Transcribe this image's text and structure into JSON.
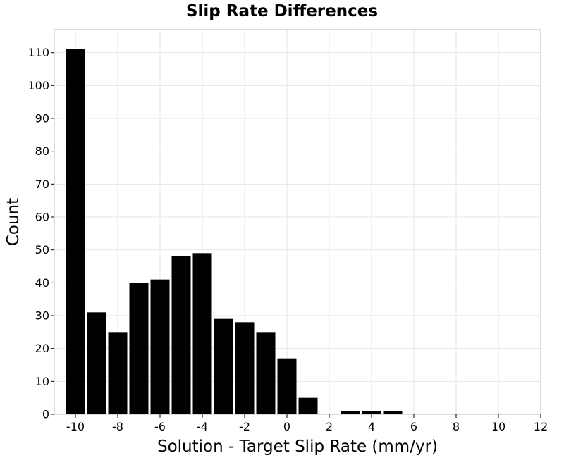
{
  "chart_data": {
    "type": "bar",
    "title": "Slip Rate Differences",
    "xlabel": "Solution - Target Slip Rate (mm/yr)",
    "ylabel": "Count",
    "xlim": [
      -11,
      12
    ],
    "ylim": [
      0,
      117
    ],
    "grid": true,
    "bin_width": 1,
    "xticks": [
      -10,
      -8,
      -6,
      -4,
      -2,
      0,
      2,
      4,
      6,
      8,
      10,
      12
    ],
    "xtick_labels": [
      "-10",
      "-8",
      "-6",
      "-4",
      "-2",
      "0",
      "2",
      "4",
      "6",
      "8",
      "10",
      "12"
    ],
    "yticks": [
      0,
      10,
      20,
      30,
      40,
      50,
      60,
      70,
      80,
      90,
      100,
      110
    ],
    "ytick_labels": [
      "0",
      "10",
      "20",
      "30",
      "40",
      "50",
      "60",
      "70",
      "80",
      "90",
      "100",
      "110"
    ],
    "bins": [
      {
        "x": -10,
        "count": 111
      },
      {
        "x": -9,
        "count": 31
      },
      {
        "x": -8,
        "count": 25
      },
      {
        "x": -7,
        "count": 40
      },
      {
        "x": -6,
        "count": 41
      },
      {
        "x": -5,
        "count": 48
      },
      {
        "x": -4,
        "count": 49
      },
      {
        "x": -3,
        "count": 29
      },
      {
        "x": -2,
        "count": 28
      },
      {
        "x": -1,
        "count": 25
      },
      {
        "x": 0,
        "count": 17
      },
      {
        "x": 1,
        "count": 5
      },
      {
        "x": 3,
        "count": 1
      },
      {
        "x": 4,
        "count": 1
      },
      {
        "x": 5,
        "count": 1
      }
    ],
    "bar_color": "#000000"
  }
}
